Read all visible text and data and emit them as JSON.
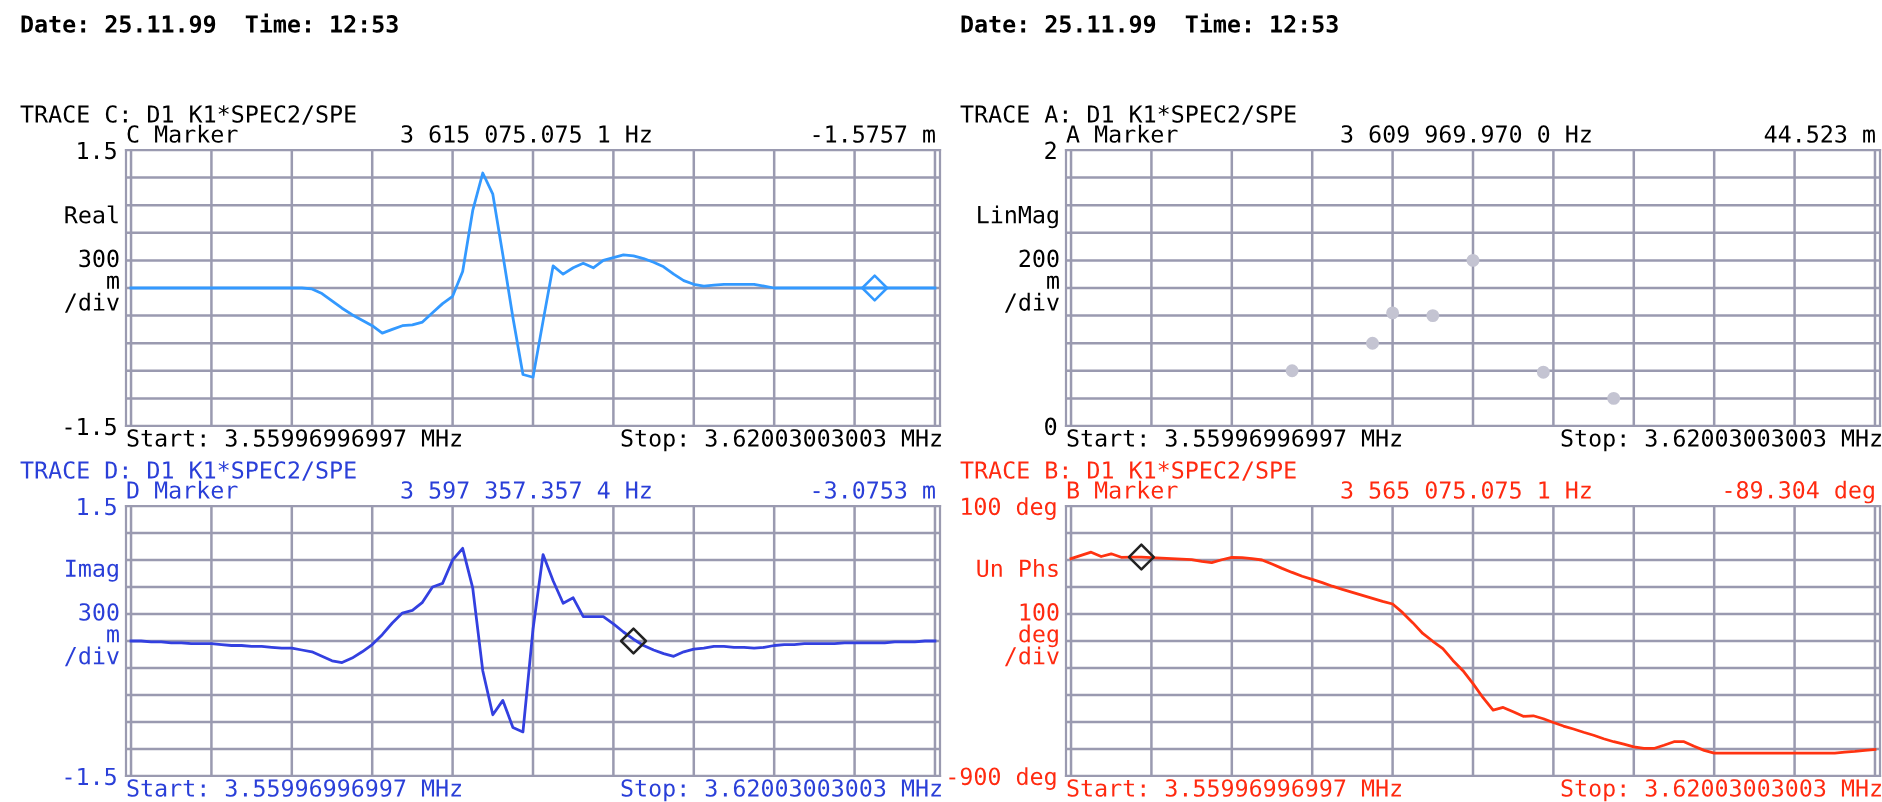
{
  "chart_data": [
    {
      "type": "line",
      "title": "TRACE C: D1 K1*SPEC2/SPE",
      "subtitle": "C Marker",
      "ylabel": "Real\n\n300\nm\n/div",
      "annotations": [
        "3 615 075.075 1 Hz",
        "-1.5757 m",
        "Start: 3.55996996997 MHz",
        "Stop: 3.62003003003 MHz",
        "Date: 25.11.99  Time: 12:53"
      ],
      "categories": [
        null,
        null,
        null,
        null,
        null,
        null,
        null,
        null,
        null,
        null,
        null,
        null,
        null,
        null,
        null,
        null,
        null,
        null,
        null,
        null,
        null,
        null,
        null,
        null,
        null,
        null,
        null,
        null,
        null,
        null,
        null,
        null,
        null,
        null,
        null,
        null,
        null,
        null,
        null,
        null,
        null,
        null,
        null,
        null,
        null,
        null,
        null,
        null,
        null,
        null,
        null,
        null,
        null,
        null,
        null,
        null,
        null,
        null,
        null,
        null,
        null,
        null,
        null,
        null,
        null,
        null,
        null,
        null,
        null,
        null,
        null,
        null,
        null,
        null,
        null,
        null,
        null,
        null,
        null,
        null,
        null
      ],
      "ylim": [
        -1.5,
        1.5
      ],
      "yticks": [
        -1.5,
        {
          "value": -1.2,
          "label": null
        },
        {
          "value": -0.9,
          "label": null
        },
        {
          "value": -0.6,
          "label": null
        },
        {
          "value": -0.3,
          "label": null
        },
        {
          "value": 0,
          "label": null
        },
        {
          "value": 0.3,
          "label": null
        },
        {
          "value": 0.6,
          "label": null
        },
        {
          "value": 0.9,
          "label": null
        },
        {
          "value": 1.2,
          "label": null
        },
        1.5
      ],
      "tick_labels": "y",
      "grid": true,
      "line_style": "solid",
      "series": [
        {
          "color": "#3399ff",
          "values": [
            0,
            0,
            0,
            0,
            0,
            0,
            0,
            0,
            0,
            0,
            0,
            0,
            0,
            0,
            0,
            0,
            0,
            0,
            -0.01,
            -0.06,
            -0.14,
            -0.22,
            -0.29,
            -0.35,
            -0.41,
            -0.49,
            -0.45,
            -0.41,
            -0.4,
            -0.37,
            -0.27,
            -0.17,
            -0.09,
            0.18,
            0.84,
            1.25,
            1.02,
            0.36,
            -0.32,
            -0.94,
            -0.97,
            -0.36,
            0.24,
            0.15,
            0.22,
            0.27,
            0.22,
            0.3,
            0.33,
            0.36,
            0.35,
            0.32,
            0.28,
            0.23,
            0.15,
            0.08,
            0.04,
            0.02,
            0.03,
            0.04,
            0.04,
            0.04,
            0.04,
            0.02,
            0,
            0,
            0,
            0,
            0,
            0,
            0,
            0,
            0,
            0,
            0,
            0,
            0,
            0,
            0,
            0,
            0
          ]
        },
        {
          "type": "scatter",
          "marker": "diamond",
          "color": "#3399ff",
          "values": [
            null,
            null,
            null,
            null,
            null,
            null,
            null,
            null,
            null,
            null,
            null,
            null,
            null,
            null,
            null,
            null,
            null,
            null,
            null,
            null,
            null,
            null,
            null,
            null,
            null,
            null,
            null,
            null,
            null,
            null,
            null,
            null,
            null,
            null,
            null,
            null,
            null,
            null,
            null,
            null,
            null,
            null,
            null,
            null,
            null,
            null,
            null,
            null,
            null,
            null,
            null,
            null,
            null,
            null,
            null,
            null,
            null,
            null,
            null,
            null,
            null,
            null,
            null,
            null,
            null,
            null,
            null,
            null,
            null,
            null,
            null,
            null,
            null,
            null,
            0,
            null,
            null,
            null,
            null,
            null,
            null
          ]
        }
      ]
    },
    {
      "type": "scatter",
      "title": "TRACE A: D1 K1*SPEC2/SPE",
      "subtitle": "A Marker",
      "ylabel": "LinMag\n\n200\nm\n/div",
      "annotations": [
        "3 609 969.970 0 Hz",
        "44.523 m",
        "Start: 3.55996996997 MHz",
        "Stop: 3.62003003003 MHz",
        "Date: 25.11.99  Time: 12:53"
      ],
      "categories": [
        null,
        null,
        null,
        null,
        null,
        null,
        null,
        null,
        null,
        null,
        null,
        null,
        null,
        null,
        null,
        null,
        null,
        null,
        null,
        null,
        null,
        null,
        null,
        null,
        null,
        null,
        null,
        null,
        null,
        null,
        null,
        null,
        null,
        null,
        null,
        null,
        null,
        null,
        null,
        null,
        null,
        null,
        null,
        null,
        null,
        null,
        null,
        null,
        null,
        null,
        null,
        null,
        null,
        null,
        null,
        null,
        null,
        null,
        null,
        null,
        null,
        null,
        null,
        null,
        null,
        null,
        null,
        null,
        null,
        null,
        null,
        null,
        null,
        null,
        null,
        null,
        null,
        null,
        null,
        null,
        null
      ],
      "ylim": [
        0,
        2
      ],
      "yticks": [
        0,
        {
          "value": 0.2,
          "label": null
        },
        {
          "value": 0.4,
          "label": null
        },
        {
          "value": 0.6,
          "label": null
        },
        {
          "value": 0.8,
          "label": null
        },
        {
          "value": 1.0,
          "label": null
        },
        {
          "value": 1.2,
          "label": null
        },
        {
          "value": 1.4,
          "label": null
        },
        {
          "value": 1.6,
          "label": null
        },
        {
          "value": 1.8,
          "label": null
        },
        2
      ],
      "tick_labels": "y",
      "grid": true,
      "marker": "circle",
      "series": [
        {
          "color": "#c4c4d2",
          "values": [
            null,
            null,
            null,
            null,
            null,
            null,
            null,
            null,
            null,
            null,
            null,
            null,
            null,
            null,
            null,
            null,
            null,
            null,
            null,
            null,
            null,
            null,
            0.4,
            null,
            null,
            null,
            null,
            null,
            null,
            null,
            0.6,
            null,
            0.82,
            null,
            null,
            null,
            0.8,
            null,
            null,
            null,
            1.2,
            null,
            null,
            null,
            null,
            null,
            null,
            0.39,
            null,
            null,
            null,
            null,
            null,
            null,
            0.2,
            null,
            null,
            null,
            null,
            null,
            null,
            null,
            null,
            null,
            null,
            null,
            null,
            null,
            null,
            null,
            null,
            null,
            null,
            null,
            null,
            null,
            null,
            null,
            null,
            null,
            null
          ]
        }
      ]
    },
    {
      "type": "line",
      "title": "TRACE D: D1 K1*SPEC2/SPE",
      "subtitle": "D Marker",
      "ylabel": "Imag\n\n300\nm\n/div",
      "annotations": [
        "3 597 357.357 4 Hz",
        "-3.0753 m",
        "Start: 3.55996996997 MHz",
        "Stop: 3.62003003003 MHz"
      ],
      "categories": [
        null,
        null,
        null,
        null,
        null,
        null,
        null,
        null,
        null,
        null,
        null,
        null,
        null,
        null,
        null,
        null,
        null,
        null,
        null,
        null,
        null,
        null,
        null,
        null,
        null,
        null,
        null,
        null,
        null,
        null,
        null,
        null,
        null,
        null,
        null,
        null,
        null,
        null,
        null,
        null,
        null,
        null,
        null,
        null,
        null,
        null,
        null,
        null,
        null,
        null,
        null,
        null,
        null,
        null,
        null,
        null,
        null,
        null,
        null,
        null,
        null,
        null,
        null,
        null,
        null,
        null,
        null,
        null,
        null,
        null,
        null,
        null,
        null,
        null,
        null,
        null,
        null,
        null,
        null,
        null,
        null
      ],
      "ylim": [
        -1.5,
        1.5
      ],
      "yticks": [
        -1.5,
        {
          "value": -1.2,
          "label": null
        },
        {
          "value": -0.9,
          "label": null
        },
        {
          "value": -0.6,
          "label": null
        },
        {
          "value": -0.3,
          "label": null
        },
        {
          "value": 0,
          "label": null
        },
        {
          "value": 0.3,
          "label": null
        },
        {
          "value": 0.6,
          "label": null
        },
        {
          "value": 0.9,
          "label": null
        },
        {
          "value": 1.2,
          "label": null
        },
        1.5
      ],
      "tick_labels": "y",
      "grid": true,
      "line_style": "solid",
      "series": [
        {
          "color": "#3340e0",
          "values": [
            0,
            0,
            -0.01,
            -0.01,
            -0.02,
            -0.02,
            -0.03,
            -0.03,
            -0.03,
            -0.04,
            -0.05,
            -0.05,
            -0.06,
            -0.06,
            -0.07,
            -0.08,
            -0.08,
            -0.1,
            -0.12,
            -0.17,
            -0.22,
            -0.24,
            -0.19,
            -0.12,
            -0.04,
            0.07,
            0.2,
            0.31,
            0.34,
            0.43,
            0.6,
            0.64,
            0.9,
            1.03,
            0.59,
            -0.33,
            -0.82,
            -0.66,
            -0.96,
            -1.01,
            0.13,
            0.96,
            0.67,
            0.42,
            0.48,
            0.27,
            0.27,
            0.27,
            0.19,
            0.1,
            0.02,
            -0.05,
            -0.1,
            -0.14,
            -0.17,
            -0.12,
            -0.09,
            -0.08,
            -0.06,
            -0.06,
            -0.07,
            -0.07,
            -0.08,
            -0.07,
            -0.05,
            -0.04,
            -0.04,
            -0.03,
            -0.03,
            -0.03,
            -0.03,
            -0.02,
            -0.02,
            -0.02,
            -0.02,
            -0.02,
            -0.01,
            -0.01,
            -0.01,
            0,
            0
          ]
        },
        {
          "type": "scatter",
          "marker": "diamond",
          "color": "#222222",
          "values": [
            null,
            null,
            null,
            null,
            null,
            null,
            null,
            null,
            null,
            null,
            null,
            null,
            null,
            null,
            null,
            null,
            null,
            null,
            null,
            null,
            null,
            null,
            null,
            null,
            null,
            null,
            null,
            null,
            null,
            null,
            null,
            null,
            null,
            null,
            null,
            null,
            null,
            null,
            null,
            null,
            null,
            null,
            null,
            null,
            null,
            null,
            null,
            null,
            null,
            null,
            0,
            null,
            null,
            null,
            null,
            null,
            null,
            null,
            null,
            null,
            null,
            null,
            null,
            null,
            null,
            null,
            null,
            null,
            null,
            null,
            null,
            null,
            null,
            null,
            null,
            null,
            null,
            null,
            null,
            null,
            null
          ]
        }
      ]
    },
    {
      "type": "line",
      "title": "TRACE B: D1 K1*SPEC2/SPE",
      "subtitle": "B Marker",
      "ylabel": "Un Phs\n\n100\ndeg\n/div",
      "annotations": [
        "3 565 075.075 1 Hz",
        "-89.304 deg",
        "Start: 3.55996996997 MHz",
        "Stop: 3.62003003003 MHz"
      ],
      "categories": [
        null,
        null,
        null,
        null,
        null,
        null,
        null,
        null,
        null,
        null,
        null,
        null,
        null,
        null,
        null,
        null,
        null,
        null,
        null,
        null,
        null,
        null,
        null,
        null,
        null,
        null,
        null,
        null,
        null,
        null,
        null,
        null,
        null,
        null,
        null,
        null,
        null,
        null,
        null,
        null,
        null,
        null,
        null,
        null,
        null,
        null,
        null,
        null,
        null,
        null,
        null,
        null,
        null,
        null,
        null,
        null,
        null,
        null,
        null,
        null,
        null,
        null,
        null,
        null,
        null,
        null,
        null,
        null,
        null,
        null,
        null,
        null,
        null,
        null,
        null,
        null,
        null,
        null,
        null,
        null,
        null
      ],
      "ylim": [
        -900,
        100
      ],
      "yticks": [
        {
          "value": -900,
          "label": "-900 deg"
        },
        {
          "value": -800,
          "label": null
        },
        {
          "value": -700,
          "label": null
        },
        {
          "value": -600,
          "label": null
        },
        {
          "value": -500,
          "label": null
        },
        {
          "value": -400,
          "label": null
        },
        {
          "value": -300,
          "label": null
        },
        {
          "value": -200,
          "label": null
        },
        {
          "value": -100,
          "label": null
        },
        {
          "value": 0,
          "label": null
        },
        {
          "value": 100,
          "label": "100 deg"
        }
      ],
      "tick_labels": "y",
      "grid": true,
      "line_style": "solid",
      "series": [
        {
          "color": "#ff3311",
          "values": [
            -95,
            -83,
            -71,
            -87,
            -77,
            -90,
            -89,
            -89,
            -91,
            -93,
            -95,
            -97,
            -99,
            -105,
            -110,
            -99,
            -90,
            -91,
            -95,
            -100,
            -115,
            -131,
            -146,
            -160,
            -172,
            -184,
            -197,
            -209,
            -220,
            -231,
            -242,
            -253,
            -263,
            -295,
            -332,
            -372,
            -401,
            -428,
            -472,
            -510,
            -558,
            -610,
            -656,
            -646,
            -662,
            -679,
            -677,
            -688,
            -702,
            -715,
            -726,
            -738,
            -749,
            -762,
            -773,
            -782,
            -792,
            -798,
            -798,
            -786,
            -773,
            -773,
            -790,
            -805,
            -815,
            -815,
            -815,
            -815,
            -815,
            -815,
            -815,
            -815,
            -815,
            -815,
            -815,
            -815,
            -815,
            -812,
            -809,
            -805,
            -802
          ]
        },
        {
          "type": "scatter",
          "marker": "diamond",
          "color": "#222222",
          "values": [
            null,
            null,
            null,
            null,
            null,
            null,
            null,
            -89,
            null,
            null,
            null,
            null,
            null,
            null,
            null,
            null,
            null,
            null,
            null,
            null,
            null,
            null,
            null,
            null,
            null,
            null,
            null,
            null,
            null,
            null,
            null,
            null,
            null,
            null,
            null,
            null,
            null,
            null,
            null,
            null,
            null,
            null,
            null,
            null,
            null,
            null,
            null,
            null,
            null,
            null,
            null,
            null,
            null,
            null,
            null,
            null,
            null,
            null,
            null,
            null,
            null,
            null,
            null,
            null,
            null,
            null,
            null,
            null,
            null,
            null,
            null,
            null,
            null,
            null,
            null,
            null,
            null,
            null,
            null,
            null,
            null
          ]
        }
      ]
    }
  ]
}
